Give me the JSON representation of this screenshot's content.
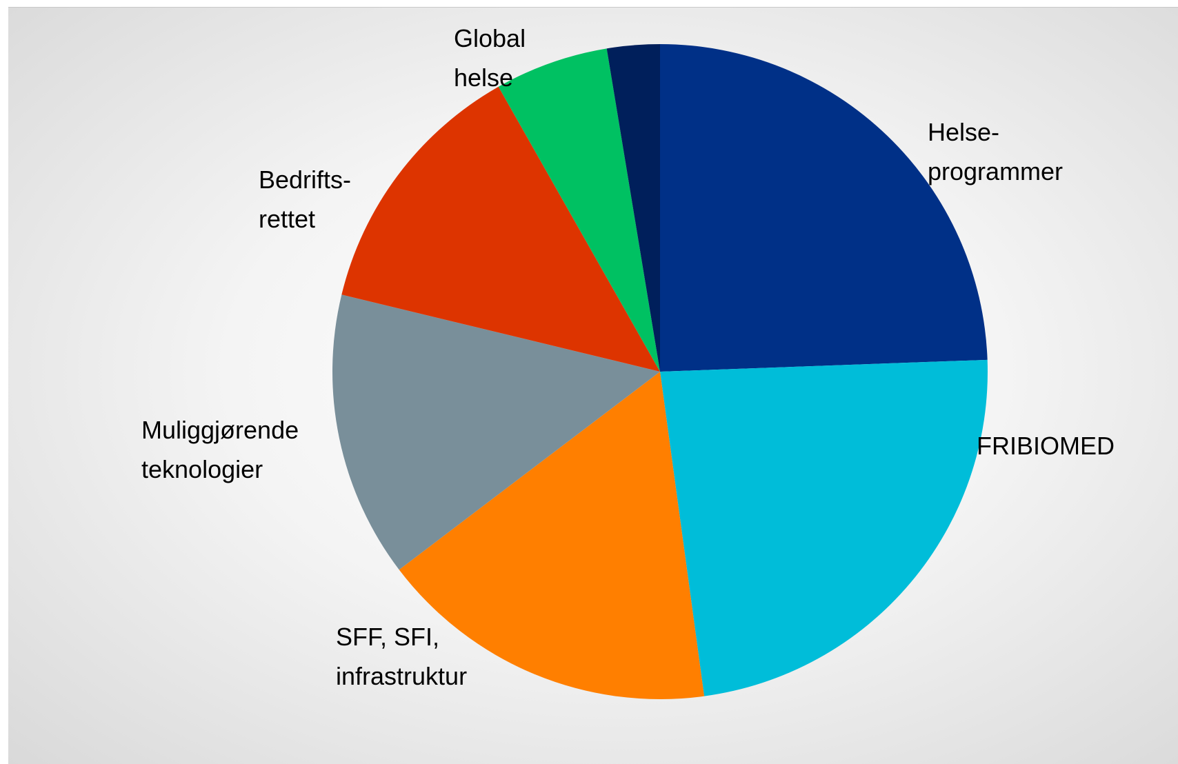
{
  "chart_data": {
    "type": "pie",
    "categories": [
      "Helse-\nprogrammer",
      "FRIBIOMED",
      "SFF, SFI,\ninfrastruktur",
      "Muliggjørende\nteknologier",
      "Bedrifts-\nrettet",
      "Global\nhelse",
      null
    ],
    "values": [
      24.4,
      23.4,
      16.8,
      14.1,
      13.0,
      5.6,
      2.6
    ],
    "colors": [
      "#003087",
      "#00bdd9",
      "#ff7f00",
      "#798f9a",
      "#dd3400",
      "#00c162",
      "#001f5b"
    ]
  }
}
